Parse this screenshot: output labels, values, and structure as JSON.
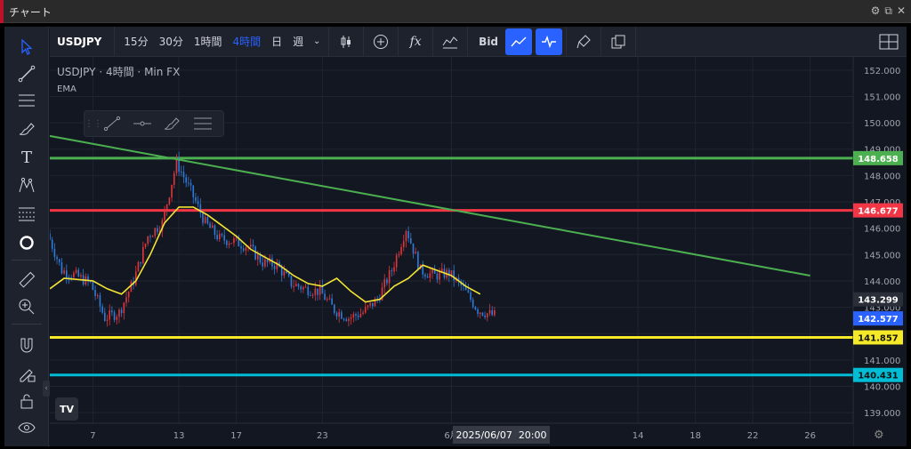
{
  "window": {
    "title": "チャート"
  },
  "toolbar": {
    "symbol": "USDJPY",
    "timeframes": [
      {
        "label": "15分",
        "active": false
      },
      {
        "label": "30分",
        "active": false
      },
      {
        "label": "1時間",
        "active": false
      },
      {
        "label": "4時間",
        "active": true
      },
      {
        "label": "日",
        "active": false
      },
      {
        "label": "週",
        "active": false
      }
    ],
    "bid_label": "Bid",
    "fx_label": "fx"
  },
  "legend": {
    "symbol": "USDJPY",
    "timeframe": "4時間",
    "source": "Min FX",
    "indicator": "EMA"
  },
  "tv_logo": "TV",
  "crosshair": {
    "date": "2025/06/07",
    "time": "20:00"
  },
  "colors": {
    "background": "#131722",
    "up": "#e0363a",
    "down": "#2f7bd8",
    "ema": "#f2e434",
    "trendline": "#4caf50"
  },
  "chart_data": {
    "type": "candlestick",
    "timeframe": "4時間",
    "y_axis": {
      "range": [
        138.6,
        152.5
      ],
      "ticks": [
        "152.000",
        "151.000",
        "150.000",
        "149.000",
        "148.000",
        "147.000",
        "146.000",
        "145.000",
        "144.000",
        "143.000",
        "142.000",
        "141.000",
        "140.000",
        "139.000"
      ]
    },
    "x_axis": {
      "range_days": [
        "2025-05-04",
        "2025-06-29"
      ],
      "ticks": [
        {
          "label": "7",
          "date": "2025-05-07"
        },
        {
          "label": "13",
          "date": "2025-05-13"
        },
        {
          "label": "17",
          "date": "2025-05-17"
        },
        {
          "label": "23",
          "date": "2025-05-23"
        },
        {
          "label": "6月",
          "date": "2025-06-01"
        },
        {
          "label": "14",
          "date": "2025-06-14"
        },
        {
          "label": "18",
          "date": "2025-06-18"
        },
        {
          "label": "22",
          "date": "2025-06-22"
        },
        {
          "label": "26",
          "date": "2025-06-26"
        }
      ]
    },
    "price_path": [
      [
        "2025-05-04",
        145.8
      ],
      [
        "2025-05-05",
        144.4
      ],
      [
        "2025-05-06",
        144.2
      ],
      [
        "2025-05-07",
        143.9
      ],
      [
        "2025-05-08",
        142.6
      ],
      [
        "2025-05-09",
        142.8
      ],
      [
        "2025-05-10",
        144.0
      ],
      [
        "2025-05-11",
        145.7
      ],
      [
        "2025-05-12",
        146.2
      ],
      [
        "2025-05-13",
        148.5
      ],
      [
        "2025-05-14",
        147.4
      ],
      [
        "2025-05-15",
        146.2
      ],
      [
        "2025-05-16",
        145.6
      ],
      [
        "2025-05-17",
        145.5
      ],
      [
        "2025-05-18",
        145.3
      ],
      [
        "2025-05-19",
        144.7
      ],
      [
        "2025-05-20",
        144.6
      ],
      [
        "2025-05-21",
        143.9
      ],
      [
        "2025-05-22",
        143.7
      ],
      [
        "2025-05-23",
        143.6
      ],
      [
        "2025-05-24",
        142.9
      ],
      [
        "2025-05-25",
        142.6
      ],
      [
        "2025-05-26",
        142.8
      ],
      [
        "2025-05-27",
        143.3
      ],
      [
        "2025-05-28",
        144.4
      ],
      [
        "2025-05-29",
        146.0
      ],
      [
        "2025-05-30",
        144.4
      ],
      [
        "2025-05-31",
        144.2
      ],
      [
        "2025-06-01",
        144.3
      ],
      [
        "2025-06-02",
        143.7
      ],
      [
        "2025-06-03",
        142.9
      ],
      [
        "2025-06-04",
        142.7
      ]
    ],
    "ema": [
      [
        "2025-05-04",
        143.7
      ],
      [
        "2025-05-05",
        144.1
      ],
      [
        "2025-05-07",
        144.0
      ],
      [
        "2025-05-08",
        143.7
      ],
      [
        "2025-05-09",
        143.5
      ],
      [
        "2025-05-10",
        144.0
      ],
      [
        "2025-05-11",
        145.0
      ],
      [
        "2025-05-12",
        146.2
      ],
      [
        "2025-05-13",
        146.8
      ],
      [
        "2025-05-14",
        146.8
      ],
      [
        "2025-05-15",
        146.5
      ],
      [
        "2025-05-16",
        146.1
      ],
      [
        "2025-05-17",
        145.7
      ],
      [
        "2025-05-18",
        145.2
      ],
      [
        "2025-05-19",
        144.9
      ],
      [
        "2025-05-20",
        144.6
      ],
      [
        "2025-05-21",
        144.2
      ],
      [
        "2025-05-22",
        143.9
      ],
      [
        "2025-05-23",
        143.8
      ],
      [
        "2025-05-24",
        144.1
      ],
      [
        "2025-05-25",
        143.6
      ],
      [
        "2025-05-26",
        143.2
      ],
      [
        "2025-05-27",
        143.3
      ],
      [
        "2025-05-28",
        143.8
      ],
      [
        "2025-05-29",
        144.1
      ],
      [
        "2025-05-30",
        144.6
      ],
      [
        "2025-05-31",
        144.4
      ],
      [
        "2025-06-01",
        144.2
      ],
      [
        "2025-06-02",
        143.8
      ],
      [
        "2025-06-03",
        143.5
      ]
    ],
    "trendline": {
      "from": [
        "2025-05-04",
        149.5
      ],
      "to": [
        "2025-06-26",
        144.2
      ],
      "color": "#4caf50"
    },
    "horizontal_lines": [
      {
        "price": 148.658,
        "label": "148.658",
        "color": "#4caf50"
      },
      {
        "price": 146.677,
        "label": "146.677",
        "color": "#f23645"
      },
      {
        "price": 141.857,
        "label": "141.857",
        "color": "#f5e928"
      },
      {
        "price": 140.431,
        "label": "140.431",
        "color": "#00bcd4"
      }
    ],
    "price_labels": [
      {
        "price": 143.299,
        "label": "143.299",
        "color": "#2a2e39"
      },
      {
        "price": 142.577,
        "label": "142.577",
        "color": "#2962ff"
      }
    ]
  }
}
